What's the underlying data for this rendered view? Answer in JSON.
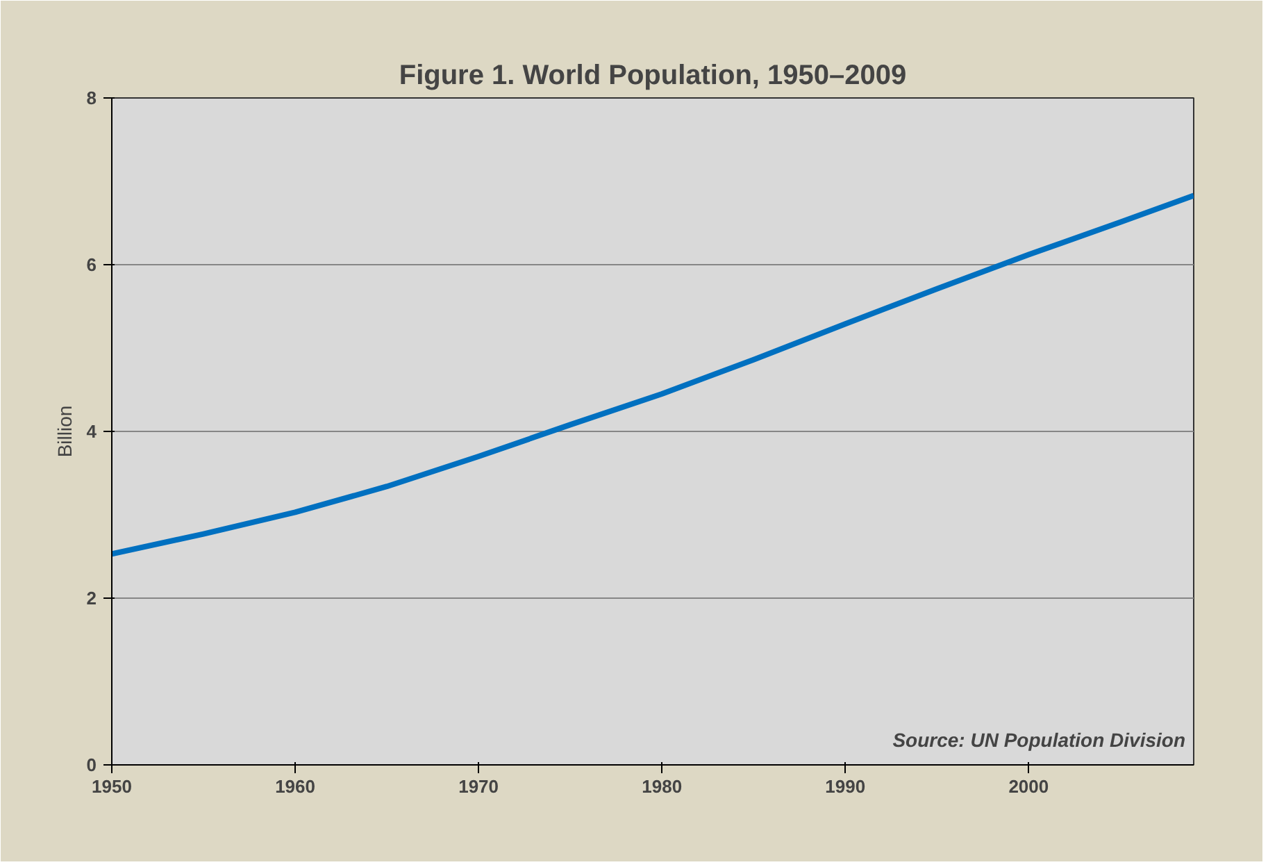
{
  "chart_data": {
    "type": "line",
    "title": "Figure 1. World Population, 1950–2009",
    "ylabel": "Billion",
    "x": [
      1950,
      1955,
      1960,
      1965,
      1970,
      1975,
      1980,
      1985,
      1990,
      1995,
      2000,
      2005,
      2009
    ],
    "series": [
      {
        "color": "#0070c0",
        "values": [
          2.53,
          2.77,
          3.03,
          3.34,
          3.7,
          4.08,
          4.45,
          4.86,
          5.29,
          5.71,
          6.12,
          6.51,
          6.83
        ]
      }
    ],
    "xlim": [
      1950,
      2009
    ],
    "xticks": [
      1950,
      1960,
      1970,
      1980,
      1990,
      2000
    ],
    "ylim": [
      0,
      8
    ],
    "yticks": [
      0,
      2,
      4,
      6,
      8
    ],
    "grid": "y",
    "marker": "none",
    "line_style": "solid",
    "annotations": [
      "Source: UN Population Division"
    ]
  }
}
